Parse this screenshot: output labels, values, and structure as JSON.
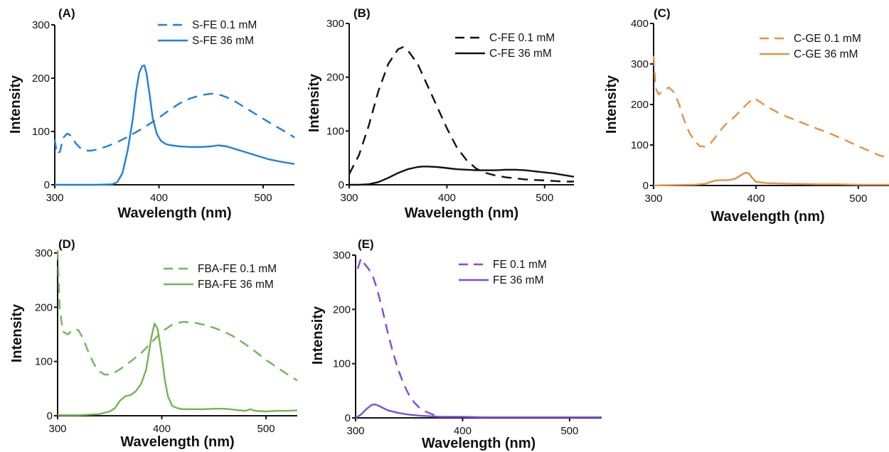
{
  "chart_data": [
    {
      "type": "line",
      "label": "(A)",
      "xlabel": "Wavelength (nm)",
      "ylabel": "Intensity",
      "xlim": [
        300,
        530
      ],
      "ylim": [
        0,
        300
      ],
      "xticks": [
        300,
        400,
        500
      ],
      "yticks": [
        0,
        100,
        200,
        300
      ],
      "legend": "top-right",
      "series": [
        {
          "name": "S-FE 0.1 mM",
          "color": "#1f7fe0",
          "style": "dashed",
          "x": [
            300,
            302,
            305,
            308,
            312,
            316,
            320,
            325,
            330,
            335,
            340,
            350,
            360,
            370,
            380,
            390,
            400,
            410,
            420,
            430,
            440,
            450,
            460,
            470,
            480,
            490,
            500,
            510,
            520,
            530
          ],
          "y": [
            85,
            58,
            62,
            88,
            96,
            92,
            78,
            68,
            64,
            64,
            66,
            72,
            80,
            90,
            101,
            113,
            126,
            140,
            153,
            162,
            168,
            171,
            168,
            160,
            148,
            136,
            124,
            112,
            101,
            89
          ]
        },
        {
          "name": "S-FE 36 mM",
          "color": "#1f7fe0",
          "style": "solid",
          "x": [
            300,
            320,
            340,
            355,
            360,
            365,
            370,
            375,
            378,
            381,
            384,
            386,
            388,
            391,
            394,
            398,
            402,
            407,
            412,
            420,
            430,
            440,
            450,
            457,
            465,
            475,
            485,
            495,
            505,
            515,
            530
          ],
          "y": [
            0,
            0,
            0,
            1,
            5,
            22,
            65,
            125,
            175,
            210,
            223,
            224,
            210,
            170,
            125,
            95,
            82,
            76,
            74,
            72,
            71,
            71,
            72,
            74,
            72,
            66,
            60,
            54,
            48,
            44,
            39
          ]
        }
      ]
    },
    {
      "type": "line",
      "label": "(B)",
      "xlabel": "Wavelength (nm)",
      "ylabel": "Intensity",
      "xlim": [
        300,
        530
      ],
      "ylim": [
        0,
        300
      ],
      "xticks": [
        300,
        400,
        500
      ],
      "yticks": [
        0,
        100,
        200,
        300
      ],
      "legend": "top-right",
      "series": [
        {
          "name": "C-FE 0.1 mM",
          "color": "#111111",
          "style": "dashed",
          "x": [
            300,
            310,
            320,
            330,
            340,
            350,
            355,
            360,
            370,
            380,
            390,
            400,
            410,
            420,
            430,
            440,
            450,
            460,
            470,
            480,
            490,
            500,
            510,
            520,
            530
          ],
          "y": [
            20,
            55,
            110,
            175,
            225,
            252,
            256,
            250,
            225,
            185,
            145,
            105,
            70,
            46,
            30,
            22,
            17,
            14,
            12,
            10,
            9,
            8,
            7,
            6,
            6
          ]
        },
        {
          "name": "C-FE 36 mM",
          "color": "#111111",
          "style": "solid",
          "x": [
            300,
            310,
            320,
            330,
            340,
            350,
            360,
            370,
            375,
            380,
            390,
            400,
            410,
            420,
            430,
            440,
            450,
            460,
            470,
            480,
            490,
            500,
            510,
            520,
            530
          ],
          "y": [
            0,
            0,
            1,
            5,
            13,
            22,
            29,
            33,
            34,
            34,
            33,
            31,
            29,
            28,
            27,
            27,
            27,
            28,
            28,
            27,
            25,
            23,
            21,
            18,
            15
          ]
        }
      ]
    },
    {
      "type": "line",
      "label": "(C)",
      "xlabel": "Wavelength (nm)",
      "ylabel": "Intensity",
      "xlim": [
        300,
        530
      ],
      "ylim": [
        0,
        400
      ],
      "xticks": [
        300,
        400,
        500
      ],
      "yticks": [
        0,
        100,
        200,
        300,
        400
      ],
      "legend": "top-right",
      "series": [
        {
          "name": "C-GE 0.1 mM",
          "color": "#de9446",
          "style": "dashed",
          "x": [
            300,
            302,
            305,
            310,
            315,
            320,
            325,
            330,
            335,
            340,
            345,
            350,
            355,
            360,
            365,
            370,
            380,
            390,
            398,
            405,
            410,
            420,
            430,
            440,
            450,
            460,
            470,
            480,
            490,
            500,
            510,
            520,
            530
          ],
          "y": [
            320,
            240,
            225,
            235,
            242,
            230,
            200,
            160,
            130,
            110,
            97,
            96,
            102,
            118,
            135,
            150,
            172,
            198,
            216,
            205,
            196,
            182,
            170,
            160,
            150,
            140,
            131,
            120,
            109,
            97,
            86,
            75,
            68
          ]
        },
        {
          "name": "C-GE 36 mM",
          "color": "#de9446",
          "style": "solid",
          "x": [
            300,
            320,
            340,
            350,
            355,
            360,
            365,
            370,
            375,
            380,
            385,
            390,
            393,
            396,
            400,
            410,
            420,
            440,
            460,
            480,
            500,
            530
          ],
          "y": [
            0,
            1,
            2,
            4,
            8,
            12,
            13,
            13,
            14,
            17,
            25,
            32,
            30,
            20,
            9,
            6,
            5,
            4,
            3,
            3,
            2,
            2
          ]
        }
      ]
    },
    {
      "type": "line",
      "label": "(D)",
      "xlabel": "Wavelength (nm)",
      "ylabel": "Intensity",
      "xlim": [
        300,
        530
      ],
      "ylim": [
        0,
        300
      ],
      "xticks": [
        300,
        400,
        500
      ],
      "yticks": [
        0,
        100,
        200,
        300
      ],
      "legend": "top-right",
      "series": [
        {
          "name": "FBA-FE 0.1 mM",
          "color": "#74b458",
          "style": "dashed",
          "x": [
            300,
            302,
            305,
            310,
            315,
            320,
            325,
            330,
            335,
            340,
            345,
            350,
            355,
            360,
            370,
            380,
            390,
            400,
            410,
            420,
            430,
            440,
            450,
            460,
            470,
            480,
            490,
            500,
            510,
            520,
            530
          ],
          "y": [
            305,
            200,
            155,
            150,
            160,
            158,
            140,
            115,
            95,
            82,
            76,
            76,
            80,
            86,
            100,
            115,
            135,
            155,
            168,
            173,
            172,
            168,
            162,
            155,
            145,
            132,
            118,
            103,
            90,
            77,
            65
          ]
        },
        {
          "name": "FBA-FE 36 mM",
          "color": "#74b458",
          "style": "solid",
          "x": [
            300,
            320,
            340,
            350,
            355,
            360,
            365,
            370,
            375,
            380,
            385,
            390,
            393,
            396,
            400,
            403,
            406,
            410,
            415,
            420,
            430,
            440,
            450,
            460,
            470,
            480,
            485,
            490,
            500,
            510,
            520,
            530
          ],
          "y": [
            1,
            1,
            3,
            8,
            14,
            28,
            36,
            38,
            45,
            58,
            85,
            145,
            170,
            160,
            110,
            65,
            35,
            18,
            14,
            12,
            12,
            12,
            13,
            13,
            11,
            9,
            12,
            9,
            8,
            9,
            9,
            10
          ]
        }
      ]
    },
    {
      "type": "line",
      "label": "(E)",
      "xlabel": "Wavelength (nm)",
      "ylabel": "Intensity",
      "xlim": [
        300,
        530
      ],
      "ylim": [
        0,
        300
      ],
      "xticks": [
        300,
        400,
        500
      ],
      "yticks": [
        0,
        100,
        200,
        300
      ],
      "legend": "top-right",
      "series": [
        {
          "name": "FE 0.1 mM",
          "color": "#7a4de0",
          "style": "dashed",
          "x": [
            302,
            305,
            308,
            312,
            316,
            320,
            325,
            330,
            335,
            340,
            345,
            350,
            355,
            360,
            365,
            370,
            375
          ],
          "y": [
            275,
            294,
            285,
            275,
            262,
            238,
            200,
            158,
            120,
            88,
            62,
            42,
            28,
            18,
            12,
            8,
            4
          ]
        },
        {
          "name": "FE 36 mM",
          "color": "#7a4de0",
          "style": "solid",
          "x": [
            300,
            305,
            310,
            315,
            318,
            322,
            326,
            330,
            340,
            350,
            360,
            370,
            380,
            390,
            400,
            420,
            450,
            480,
            510,
            530
          ],
          "y": [
            0,
            6,
            16,
            24,
            25,
            22,
            18,
            14,
            9,
            6,
            4,
            3,
            2,
            2,
            2,
            1,
            1,
            1,
            1,
            1
          ]
        }
      ]
    }
  ]
}
